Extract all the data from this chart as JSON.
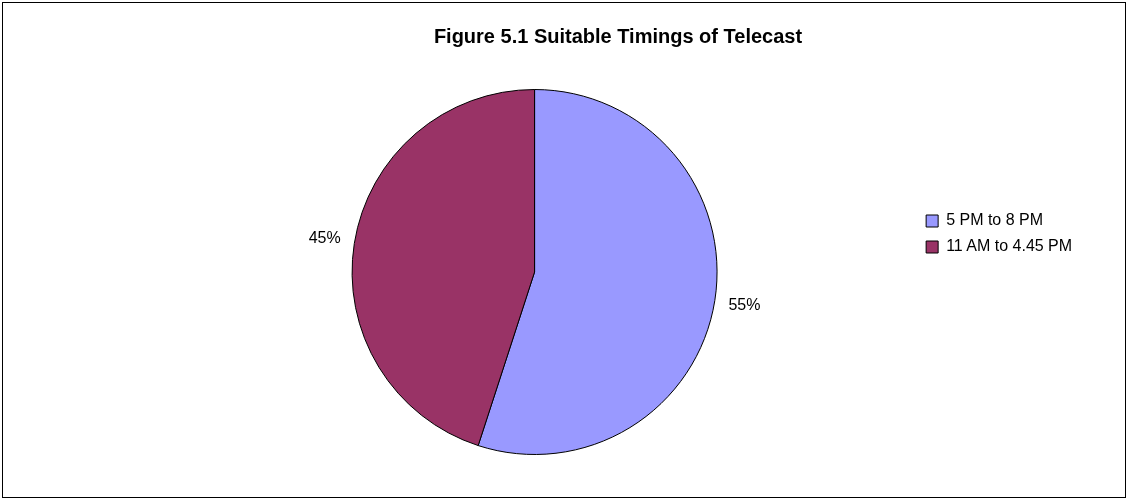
{
  "chart_data": {
    "type": "pie",
    "title": "Figure 5.1 Suitable Timings of Telecast",
    "categories": [
      "5 PM to 8 PM",
      "11 AM to 4.45 PM"
    ],
    "values": [
      55,
      45
    ],
    "colors": [
      "#9999ff",
      "#993366"
    ],
    "value_labels": [
      "55%",
      "45%"
    ],
    "legend": "right"
  }
}
